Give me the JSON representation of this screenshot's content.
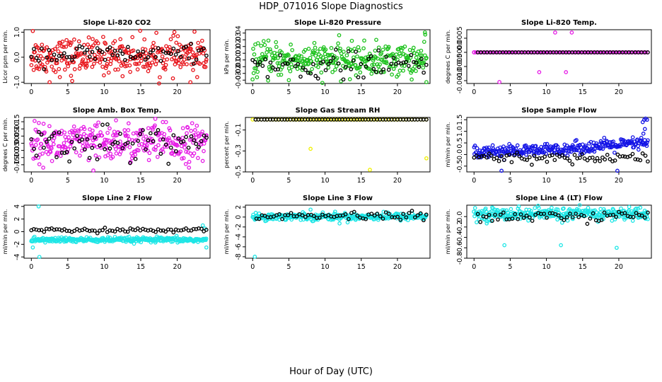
{
  "page": {
    "title": "HDP_071016  Slope Diagnostics",
    "xlabel": "Hour of Day (UTC)"
  },
  "chart_data": [
    {
      "id": "p1",
      "type": "scatter",
      "title": "Slope Li-820 CO2",
      "ylabel": "Licor ppm per min.",
      "xlim": [
        -1,
        24.5
      ],
      "ylim": [
        -1.05,
        1.1
      ],
      "xticks": [
        0,
        5,
        10,
        15,
        20
      ],
      "yticks": [
        -1,
        0,
        1
      ],
      "ytick_labels": [
        "-1.0",
        "0.0",
        "1.0"
      ],
      "series": [
        {
          "name": "fit",
          "color": "#e8141b",
          "gen": {
            "n": 320,
            "mean": 0.05,
            "sd": 0.35,
            "t0": 0,
            "t1": 24
          },
          "outliers": [
            [
              0.2,
              1.05
            ],
            [
              2.5,
              -1.0
            ],
            [
              5.6,
              -0.95
            ],
            [
              21.8,
              -1.0
            ]
          ]
        },
        {
          "name": "reference",
          "color": "#000000",
          "gen": {
            "n": 70,
            "mean": 0.1,
            "sd": 0.2,
            "t0": 0,
            "t1": 24
          }
        }
      ]
    },
    {
      "id": "p2",
      "type": "scatter",
      "title": "Slope Li-820 Pressure",
      "ylabel": "kPa per min.",
      "xlim": [
        -1,
        24.5
      ],
      "ylim": [
        -0.035,
        0.045
      ],
      "xticks": [
        0,
        5,
        10,
        15,
        20
      ],
      "yticks": [
        -0.03,
        -0.02,
        -0.01,
        0,
        0.01,
        0.02,
        0.03,
        0.04
      ],
      "ytick_labels": [
        "-0.03",
        "-0.02",
        "-0.01",
        "0.00",
        "0.01",
        "0.02",
        "0.03",
        "0.04"
      ],
      "series": [
        {
          "name": "fit",
          "color": "#1fc21f",
          "gen": {
            "n": 330,
            "mean": 0.0,
            "sd": 0.012,
            "t0": 0,
            "t1": 24
          },
          "outliers": [
            [
              23.8,
              0.041
            ],
            [
              24.0,
              -0.033
            ],
            [
              5,
              -0.03
            ]
          ]
        },
        {
          "name": "reference",
          "color": "#000000",
          "gen": {
            "n": 70,
            "mean": -0.008,
            "sd": 0.01,
            "t0": 0,
            "t1": 24
          }
        }
      ]
    },
    {
      "id": "p3",
      "type": "scatter",
      "title": "Slope Li-820 Temp.",
      "ylabel": "degrees C per min.",
      "xlim": [
        -1,
        24.5
      ],
      "ylim": [
        -0.0011,
        0.0008
      ],
      "xticks": [
        0,
        5,
        10,
        15,
        20
      ],
      "yticks": [
        -0.001,
        -0.0005,
        0,
        0.0005
      ],
      "ytick_labels": [
        "-0.0010",
        "-0.0005",
        "0.0000",
        "0.0005"
      ],
      "series": [
        {
          "name": "fit",
          "color": "#e61ee6",
          "gen": {
            "n": 90,
            "mean": 0,
            "sd": 0,
            "t0": 0,
            "t1": 24
          },
          "outliers": [
            [
              0,
              0
            ],
            [
              3.5,
              -0.00105
            ],
            [
              9,
              -0.0007
            ],
            [
              11.2,
              0.0007
            ],
            [
              12.7,
              -0.0007
            ],
            [
              13.5,
              0.0007
            ]
          ]
        },
        {
          "name": "reference",
          "color": "#000000",
          "gen": {
            "n": 55,
            "mean": 0,
            "sd": 0,
            "t0": 0.5,
            "t1": 24
          }
        }
      ]
    },
    {
      "id": "p4",
      "type": "scatter",
      "title": "Slope Amb. Box Temp.",
      "ylabel": "degrees C per min.",
      "xlim": [
        -1,
        24.5
      ],
      "ylim": [
        -0.2,
        0.18
      ],
      "xticks": [
        0,
        5,
        10,
        15,
        20
      ],
      "yticks": [
        -0.15,
        -0.1,
        -0.05,
        0,
        0.05,
        0.1,
        0.15
      ],
      "ytick_labels": [
        "-0.15",
        "-0.10",
        "-0.05",
        "0.00",
        "0.05",
        "0.10",
        "0.15"
      ],
      "series": [
        {
          "name": "fit",
          "color": "#e61ee6",
          "gen": {
            "n": 330,
            "mean": 0.0,
            "sd": 0.065,
            "t0": 0,
            "t1": 24
          },
          "outliers": [
            [
              8.5,
              -0.19
            ],
            [
              11.6,
              0.16
            ],
            [
              17,
              0.17
            ]
          ]
        },
        {
          "name": "reference",
          "color": "#000000",
          "gen": {
            "n": 70,
            "mean": 0.0,
            "sd": 0.06,
            "t0": 0,
            "t1": 24
          }
        }
      ]
    },
    {
      "id": "p5",
      "type": "scatter",
      "title": "Slope Gas Stream RH",
      "ylabel": "percent per min.",
      "xlim": [
        -1,
        24.5
      ],
      "ylim": [
        -0.5,
        0.02
      ],
      "xticks": [
        0,
        5,
        10,
        15,
        20
      ],
      "yticks": [
        -0.5,
        -0.3,
        -0.1
      ],
      "ytick_labels": [
        "-0.5",
        "-0.3",
        "-0.1"
      ],
      "series": [
        {
          "name": "fit",
          "color": "#f0f000",
          "gen": {
            "n": 60,
            "mean": 0,
            "sd": 0,
            "t0": 0,
            "t1": 24
          },
          "outliers": [
            [
              8,
              -0.28
            ],
            [
              16.2,
              -0.48
            ],
            [
              24,
              -0.37
            ]
          ]
        },
        {
          "name": "reference",
          "color": "#000000",
          "gen": {
            "n": 60,
            "mean": 0,
            "sd": 0,
            "t0": 0.4,
            "t1": 24
          }
        }
      ]
    },
    {
      "id": "p6",
      "type": "scatter",
      "title": "Slope Sample Flow",
      "ylabel": "ml/min per min.",
      "xlim": [
        -1,
        24.5
      ],
      "ylim": [
        -0.75,
        1.6
      ],
      "xticks": [
        0,
        5,
        10,
        15,
        20
      ],
      "yticks": [
        -0.5,
        0,
        0.5,
        1,
        1.5
      ],
      "ytick_labels": [
        "-0.5",
        "0.0",
        "0.5",
        "1.0",
        "1.5"
      ],
      "series": [
        {
          "name": "fit",
          "color": "#1414e6",
          "gen": {
            "n": 300,
            "mean": 0.15,
            "sd": 0.13,
            "t0": 0,
            "t1": 24,
            "trend": 0.022
          },
          "outliers": [
            [
              23.5,
              1.5
            ],
            [
              23.7,
              1.55
            ],
            [
              23.3,
              1.4
            ],
            [
              23.9,
              1.5
            ],
            [
              23.6,
              1.1
            ],
            [
              23.4,
              0.9
            ],
            [
              3.8,
              -0.7
            ],
            [
              19.8,
              -0.7
            ]
          ]
        },
        {
          "name": "reference",
          "color": "#000000",
          "gen": {
            "n": 70,
            "mean": -0.15,
            "sd": 0.12,
            "t0": 0,
            "t1": 24
          }
        }
      ]
    },
    {
      "id": "p7",
      "type": "scatter",
      "title": "Slope Line 2 Flow",
      "ylabel": "ml/min per min.",
      "xlim": [
        -1,
        24.5
      ],
      "ylim": [
        -4.2,
        4.2
      ],
      "xticks": [
        0,
        5,
        10,
        15,
        20
      ],
      "yticks": [
        -4,
        -2,
        0,
        2,
        4
      ],
      "ytick_labels": [
        "-4",
        "-2",
        "0",
        "2",
        "4"
      ],
      "series": [
        {
          "name": "fit",
          "color": "#1ee6e6",
          "gen": {
            "n": 330,
            "mean": -1.3,
            "sd": 0.2,
            "t0": 0,
            "t1": 24
          },
          "outliers": [
            [
              1,
              4
            ],
            [
              1.1,
              -4
            ],
            [
              0.2,
              -2.5
            ],
            [
              23.5,
              1
            ],
            [
              23.8,
              0.5
            ],
            [
              24,
              -2.5
            ]
          ]
        },
        {
          "name": "reference",
          "color": "#000000",
          "gen": {
            "n": 70,
            "mean": 0.25,
            "sd": 0.15,
            "t0": 0,
            "t1": 24
          }
        }
      ]
    },
    {
      "id": "p8",
      "type": "scatter",
      "title": "Slope Line 3 Flow",
      "ylabel": "ml/min per min.",
      "xlim": [
        -1,
        24.5
      ],
      "ylim": [
        -8.3,
        2.4
      ],
      "xticks": [
        0,
        5,
        10,
        15,
        20
      ],
      "yticks": [
        -8,
        -6,
        -4,
        -2,
        0,
        2
      ],
      "ytick_labels": [
        "-8",
        "-6",
        "-4",
        "-2",
        "0",
        "2"
      ],
      "series": [
        {
          "name": "fit",
          "color": "#1ee6e6",
          "gen": {
            "n": 330,
            "mean": 0.1,
            "sd": 0.35,
            "t0": 0,
            "t1": 24
          },
          "outliers": [
            [
              0.3,
              -8
            ],
            [
              8,
              1.5
            ],
            [
              12,
              -1.3
            ]
          ]
        },
        {
          "name": "reference",
          "color": "#000000",
          "gen": {
            "n": 60,
            "mean": 0.2,
            "sd": 0.4,
            "t0": 0.5,
            "t1": 24
          }
        }
      ]
    },
    {
      "id": "p9",
      "type": "scatter",
      "title": "Slope Line 4 (LT) Flow",
      "ylabel": "ml/min per min.",
      "xlim": [
        -1,
        24.5
      ],
      "ylim": [
        -0.8,
        0.22
      ],
      "xticks": [
        0,
        5,
        10,
        15,
        20
      ],
      "yticks": [
        -0.8,
        -0.6,
        -0.4,
        -0.2,
        0
      ],
      "ytick_labels": [
        "-0.8",
        "-0.6",
        "-0.4",
        "-0.2",
        "0.0"
      ],
      "series": [
        {
          "name": "fit",
          "color": "#1ee6e6",
          "gen": {
            "n": 330,
            "mean": 0.05,
            "sd": 0.06,
            "t0": 0,
            "t1": 24
          },
          "outliers": [
            [
              4.2,
              -0.55
            ],
            [
              12,
              -0.55
            ],
            [
              19.7,
              -0.6
            ],
            [
              4.5,
              0.12
            ]
          ]
        },
        {
          "name": "reference",
          "color": "#000000",
          "gen": {
            "n": 60,
            "mean": 0.0,
            "sd": 0.06,
            "t0": 0.5,
            "t1": 24
          }
        }
      ]
    }
  ]
}
